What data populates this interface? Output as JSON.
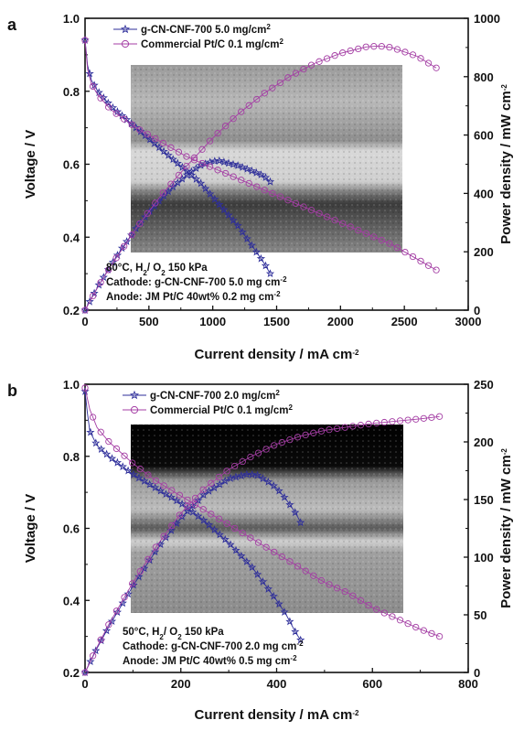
{
  "chart_data": [
    {
      "panel_label": "a",
      "type": "line",
      "xlabel_main": "Current density / mA cm",
      "xlabel_sup": "-2",
      "ylabel_left": "Voltage / V",
      "ylabel_right_main": "Power density / mW cm",
      "ylabel_right_sup": "-2",
      "xlim": [
        0,
        3000
      ],
      "ylim_left": [
        0.2,
        1.0
      ],
      "ylim_right": [
        0,
        1000
      ],
      "x_ticks": [
        "0",
        "500",
        "1000",
        "1500",
        "2000",
        "2500",
        "3000"
      ],
      "y_left_ticks": [
        "0.2",
        "0.4",
        "0.6",
        "0.8",
        "1.0"
      ],
      "y_right_ticks": [
        "0",
        "200",
        "400",
        "600",
        "800",
        "1000"
      ],
      "legend": [
        {
          "main": "g-CN-CNF-700 5.0 mg/cm",
          "sup": "2",
          "color": "#2e2e9a",
          "marker": "star"
        },
        {
          "main": "Commercial Pt/C 0.1 mg/cm",
          "sup": "2",
          "color": "#a43ea4",
          "marker": "circle"
        }
      ],
      "annotations": [
        {
          "main": "80°C, H",
          "s1": "2",
          "mid": "/ O",
          "s2": "2",
          "end": " 150 kPa"
        },
        {
          "main": "Cathode: g-CN-CNF-700 5.0 mg cm",
          "sup": "-2"
        },
        {
          "main": "Anode: JM Pt/C 40wt% 0.2 mg cm",
          "sup": "-2"
        }
      ],
      "series": [
        {
          "name": "g-CN-CNF-700 5.0 mg/cm2 voltage",
          "axis": "left",
          "color": "#2e2e9a",
          "marker": "star",
          "x": [
            0,
            20,
            50,
            100,
            200,
            300,
            400,
            500,
            600,
            700,
            800,
            900,
            1000,
            1100,
            1200,
            1300,
            1400,
            1450
          ],
          "y": [
            0.94,
            0.87,
            0.83,
            0.8,
            0.76,
            0.73,
            0.7,
            0.67,
            0.64,
            0.61,
            0.58,
            0.55,
            0.51,
            0.47,
            0.43,
            0.38,
            0.33,
            0.3
          ]
        },
        {
          "name": "g-CN-CNF-700 5.0 mg/cm2 power",
          "axis": "right",
          "color": "#2e2e9a",
          "marker": "star",
          "x": [
            0,
            100,
            200,
            300,
            400,
            500,
            600,
            700,
            800,
            900,
            1000,
            1050,
            1100,
            1200,
            1300,
            1400,
            1450
          ],
          "y": [
            0,
            80,
            152,
            219,
            280,
            335,
            384,
            427,
            464,
            495,
            510,
            512,
            506,
            495,
            478,
            460,
            440
          ]
        },
        {
          "name": "Commercial Pt/C 0.1 mg/cm2 voltage",
          "axis": "left",
          "color": "#a43ea4",
          "marker": "circle",
          "x": [
            0,
            20,
            50,
            100,
            200,
            400,
            600,
            800,
            1000,
            1200,
            1400,
            1600,
            1800,
            2000,
            2200,
            2400,
            2600,
            2750
          ],
          "y": [
            0.94,
            0.86,
            0.82,
            0.79,
            0.75,
            0.7,
            0.66,
            0.62,
            0.59,
            0.56,
            0.53,
            0.5,
            0.47,
            0.44,
            0.41,
            0.38,
            0.34,
            0.31
          ]
        },
        {
          "name": "Commercial Pt/C 0.1 mg/cm2 power",
          "axis": "right",
          "color": "#a43ea4",
          "marker": "circle",
          "x": [
            0,
            100,
            200,
            400,
            600,
            800,
            1000,
            1200,
            1400,
            1600,
            1800,
            2000,
            2200,
            2300,
            2400,
            2600,
            2750
          ],
          "y": [
            0,
            79,
            150,
            280,
            396,
            496,
            590,
            672,
            742,
            800,
            846,
            880,
            902,
            905,
            900,
            870,
            830
          ]
        }
      ]
    },
    {
      "panel_label": "b",
      "type": "line",
      "xlabel_main": "Current density / mA cm",
      "xlabel_sup": "-2",
      "ylabel_left": "Voltage / V",
      "ylabel_right_main": "Power density / mW cm",
      "ylabel_right_sup": "-2",
      "xlim": [
        0,
        800
      ],
      "ylim_left": [
        0.2,
        1.0
      ],
      "ylim_right": [
        0,
        250
      ],
      "x_ticks": [
        "0",
        "200",
        "400",
        "600",
        "800"
      ],
      "y_left_ticks": [
        "0.2",
        "0.4",
        "0.6",
        "0.8",
        "1.0"
      ],
      "y_right_ticks": [
        "0",
        "50",
        "100",
        "150",
        "200",
        "250"
      ],
      "legend": [
        {
          "main": "g-CN-CNF-700 2.0 mg/cm",
          "sup": "2",
          "color": "#2e2e9a",
          "marker": "star"
        },
        {
          "main": "Commercial Pt/C 0.1 mg/cm",
          "sup": "2",
          "color": "#a43ea4",
          "marker": "circle"
        }
      ],
      "annotations": [
        {
          "main": "50°C, H",
          "s1": "2",
          "mid": "/ O",
          "s2": "2",
          "end": " 150 kPa"
        },
        {
          "main": "Cathode: g-CN-CNF-700 2.0 mg cm",
          "sup": "-2"
        },
        {
          "main": "Anode: JM Pt/C 40wt% 0.5 mg cm",
          "sup": "-2"
        }
      ],
      "series": [
        {
          "name": "g-CN-CNF-700 2.0 mg/cm2 voltage",
          "axis": "left",
          "color": "#2e2e9a",
          "marker": "star",
          "x": [
            0,
            5,
            10,
            25,
            50,
            100,
            150,
            200,
            250,
            300,
            350,
            400,
            420,
            440,
            450
          ],
          "y": [
            0.98,
            0.92,
            0.87,
            0.83,
            0.8,
            0.75,
            0.71,
            0.67,
            0.62,
            0.56,
            0.49,
            0.4,
            0.36,
            0.31,
            0.29
          ]
        },
        {
          "name": "g-CN-CNF-700 2.0 mg/cm2 power",
          "axis": "right",
          "color": "#2e2e9a",
          "marker": "star",
          "x": [
            0,
            25,
            50,
            100,
            150,
            200,
            250,
            300,
            340,
            360,
            380,
            400,
            420,
            440,
            450
          ],
          "y": [
            0,
            21,
            40,
            75,
            107,
            134,
            155,
            168,
            172,
            171,
            166,
            160,
            150,
            138,
            130
          ]
        },
        {
          "name": "Commercial Pt/C 0.1 mg/cm2 voltage",
          "axis": "left",
          "color": "#a43ea4",
          "marker": "circle",
          "x": [
            0,
            5,
            10,
            25,
            50,
            100,
            150,
            200,
            250,
            300,
            350,
            400,
            450,
            500,
            550,
            600,
            650,
            700,
            740
          ],
          "y": [
            0.99,
            0.96,
            0.93,
            0.88,
            0.84,
            0.78,
            0.73,
            0.69,
            0.65,
            0.61,
            0.57,
            0.53,
            0.49,
            0.45,
            0.42,
            0.38,
            0.35,
            0.32,
            0.3
          ]
        },
        {
          "name": "Commercial Pt/C 0.1 mg/cm2 power",
          "axis": "right",
          "color": "#a43ea4",
          "marker": "circle",
          "x": [
            0,
            25,
            50,
            100,
            150,
            200,
            250,
            300,
            350,
            400,
            450,
            500,
            550,
            600,
            650,
            700,
            740
          ],
          "y": [
            0,
            22,
            42,
            78,
            110,
            138,
            160,
            176,
            188,
            198,
            205,
            210,
            213,
            216,
            218,
            220,
            222
          ]
        }
      ]
    }
  ]
}
